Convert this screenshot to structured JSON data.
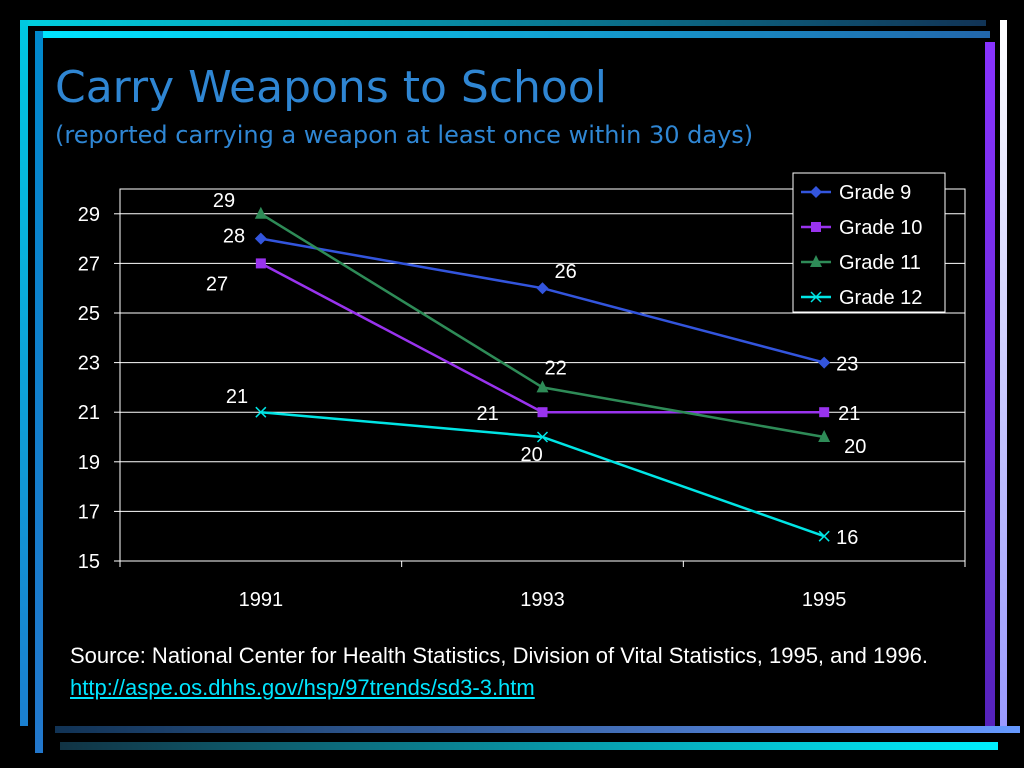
{
  "title": "Carry Weapons to School",
  "subtitle": "(reported carrying a weapon at least once within 30 days)",
  "chart_data": {
    "type": "line",
    "x": [
      "1991",
      "1993",
      "1995"
    ],
    "series": [
      {
        "name": "Grade 9",
        "values": [
          28,
          26,
          23
        ],
        "color": "#3355dd",
        "marker": "diamond"
      },
      {
        "name": "Grade 10",
        "values": [
          27,
          21,
          21
        ],
        "color": "#9933ee",
        "marker": "square"
      },
      {
        "name": "Grade 11",
        "values": [
          29,
          22,
          20
        ],
        "color": "#2e8b57",
        "marker": "triangle"
      },
      {
        "name": "Grade 12",
        "values": [
          21,
          20,
          16
        ],
        "color": "#00e5e5",
        "marker": "x"
      }
    ],
    "y_ticks": [
      "15",
      "17",
      "19",
      "21",
      "23",
      "25",
      "27",
      "29"
    ],
    "ylim": [
      15,
      30
    ],
    "grid": true,
    "legend": "top-right"
  },
  "source": {
    "text": "Source: National Center for Health Statistics,  Division of Vital Statistics, 1995, and 1996.",
    "link": "http://aspe.os.dhhs.gov/hsp/97trends/sd3-3.htm"
  }
}
